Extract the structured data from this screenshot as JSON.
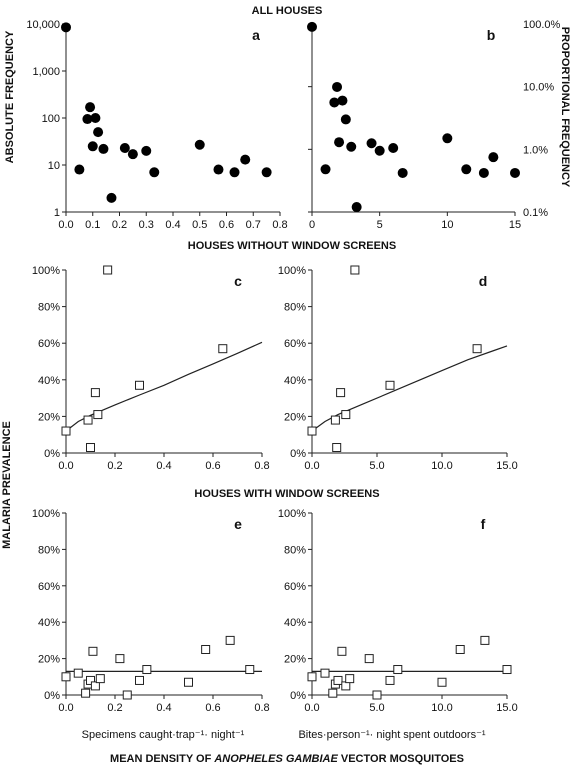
{
  "headings": {
    "all_houses": "ALL HOUSES",
    "without_screens": "HOUSES WITHOUT WINDOW SCREENS",
    "with_screens": "HOUSES WITH WINDOW SCREENS",
    "bottom_title_pre": "MEAN DENSITY OF ",
    "bottom_title_italic": "ANOPHELES GAMBIAE",
    "bottom_title_post": " VECTOR MOSQUITOES"
  },
  "axis_labels": {
    "absolute_frequency": "ABSOLUTE FREQUENCY",
    "proportional_frequency": "PROPORTIONAL FREQUENCY",
    "malaria_prevalence": "MALARIA PREVALENCE",
    "x_left": "Specimens caught·trap⁻¹· night⁻¹",
    "x_right": "Bites·person⁻¹· night spent outdoors⁻¹"
  },
  "chart_data": [
    {
      "panel": "a",
      "type": "scatter",
      "ylabel": "ABSOLUTE FREQUENCY",
      "y_scale": "log",
      "xlim": [
        0,
        0.8
      ],
      "ylim": [
        1,
        10000
      ],
      "x_ticks": [
        "0.0",
        "0.1",
        "0.2",
        "0.3",
        "0.4",
        "0.5",
        "0.6",
        "0.7",
        "0.8"
      ],
      "y_ticks": [
        "1",
        "10",
        "100",
        "1,000",
        "10,000"
      ],
      "points": [
        [
          0.0,
          8500
        ],
        [
          0.05,
          8
        ],
        [
          0.08,
          95
        ],
        [
          0.09,
          170
        ],
        [
          0.1,
          25
        ],
        [
          0.11,
          100
        ],
        [
          0.12,
          50
        ],
        [
          0.14,
          22
        ],
        [
          0.17,
          2
        ],
        [
          0.22,
          23
        ],
        [
          0.25,
          17
        ],
        [
          0.3,
          20
        ],
        [
          0.33,
          7
        ],
        [
          0.5,
          27
        ],
        [
          0.57,
          8
        ],
        [
          0.63,
          7
        ],
        [
          0.67,
          13
        ],
        [
          0.75,
          7
        ]
      ]
    },
    {
      "panel": "b",
      "type": "scatter",
      "ylabel": "PROPORTIONAL FREQUENCY",
      "y_scale": "log",
      "xlim": [
        0,
        15
      ],
      "ylim": [
        0.1,
        100
      ],
      "x_ticks": [
        "0",
        "5",
        "10",
        "15"
      ],
      "y_ticks": [
        "0.1%",
        "1.0%",
        "10.0%",
        "100.0%"
      ],
      "points": [
        [
          0.0,
          90
        ],
        [
          1.0,
          0.48
        ],
        [
          1.65,
          5.6
        ],
        [
          1.85,
          9.9
        ],
        [
          2.0,
          1.3
        ],
        [
          2.25,
          6.0
        ],
        [
          2.5,
          3.0
        ],
        [
          2.9,
          1.1
        ],
        [
          3.3,
          0.12
        ],
        [
          4.4,
          1.25
        ],
        [
          5.0,
          0.95
        ],
        [
          6.0,
          1.05
        ],
        [
          6.7,
          0.42
        ],
        [
          10.0,
          1.5
        ],
        [
          11.4,
          0.48
        ],
        [
          12.7,
          0.42
        ],
        [
          13.4,
          0.75
        ],
        [
          15.0,
          0.42
        ]
      ]
    },
    {
      "panel": "c",
      "type": "scatter",
      "ylabel": "MALARIA PREVALENCE",
      "xlim": [
        0,
        0.8
      ],
      "ylim": [
        0,
        1
      ],
      "x_ticks": [
        "0.0",
        "0.2",
        "0.4",
        "0.6",
        "0.8"
      ],
      "y_ticks": [
        "0%",
        "20%",
        "40%",
        "60%",
        "80%",
        "100%"
      ],
      "points": [
        [
          0.0,
          0.12
        ],
        [
          0.09,
          0.18
        ],
        [
          0.1,
          0.03
        ],
        [
          0.12,
          0.33
        ],
        [
          0.13,
          0.21
        ],
        [
          0.17,
          1.0
        ],
        [
          0.3,
          0.37
        ],
        [
          0.64,
          0.57
        ]
      ],
      "fit_curve": [
        [
          0.0,
          0.12
        ],
        [
          0.05,
          0.172
        ],
        [
          0.1,
          0.206
        ],
        [
          0.2,
          0.263
        ],
        [
          0.3,
          0.317
        ],
        [
          0.4,
          0.37
        ],
        [
          0.5,
          0.43
        ],
        [
          0.6,
          0.487
        ],
        [
          0.7,
          0.545
        ],
        [
          0.8,
          0.605
        ]
      ]
    },
    {
      "panel": "d",
      "type": "scatter",
      "xlim": [
        0,
        15
      ],
      "ylim": [
        0,
        1
      ],
      "x_ticks": [
        "0.0",
        "5.0",
        "10.0",
        "15.0"
      ],
      "y_ticks": [
        "0%",
        "20%",
        "40%",
        "60%",
        "80%",
        "100%"
      ],
      "points": [
        [
          0.0,
          0.12
        ],
        [
          1.8,
          0.18
        ],
        [
          1.9,
          0.03
        ],
        [
          2.2,
          0.33
        ],
        [
          2.6,
          0.21
        ],
        [
          3.3,
          1.0
        ],
        [
          6.0,
          0.37
        ],
        [
          12.7,
          0.57
        ]
      ],
      "fit_curve": [
        [
          0.0,
          0.12
        ],
        [
          1.0,
          0.172
        ],
        [
          2.0,
          0.21
        ],
        [
          4.0,
          0.27
        ],
        [
          6.0,
          0.33
        ],
        [
          8.0,
          0.39
        ],
        [
          10.0,
          0.45
        ],
        [
          12.0,
          0.51
        ],
        [
          14.0,
          0.56
        ],
        [
          15.0,
          0.585
        ]
      ]
    },
    {
      "panel": "e",
      "type": "scatter",
      "xlabel": "Specimens caught·trap⁻¹· night⁻¹",
      "xlim": [
        0,
        0.8
      ],
      "ylim": [
        0,
        1
      ],
      "x_ticks": [
        "0.0",
        "0.2",
        "0.4",
        "0.6",
        "0.8"
      ],
      "y_ticks": [
        "0%",
        "20%",
        "40%",
        "60%",
        "80%",
        "100%"
      ],
      "points": [
        [
          0.0,
          0.1
        ],
        [
          0.05,
          0.12
        ],
        [
          0.08,
          0.01
        ],
        [
          0.09,
          0.06
        ],
        [
          0.1,
          0.08
        ],
        [
          0.11,
          0.24
        ],
        [
          0.12,
          0.05
        ],
        [
          0.14,
          0.09
        ],
        [
          0.22,
          0.2
        ],
        [
          0.25,
          0.0
        ],
        [
          0.3,
          0.08
        ],
        [
          0.33,
          0.14
        ],
        [
          0.5,
          0.07
        ],
        [
          0.57,
          0.25
        ],
        [
          0.67,
          0.3
        ],
        [
          0.75,
          0.14
        ]
      ],
      "fit_line": 0.13
    },
    {
      "panel": "f",
      "type": "scatter",
      "xlabel": "Bites·person⁻¹· night spent outdoors⁻¹",
      "xlim": [
        0,
        15
      ],
      "ylim": [
        0,
        1
      ],
      "x_ticks": [
        "0.0",
        "5.0",
        "10.0",
        "15.0"
      ],
      "y_ticks": [
        "0%",
        "20%",
        "40%",
        "60%",
        "80%",
        "100%"
      ],
      "points": [
        [
          0.0,
          0.1
        ],
        [
          1.0,
          0.12
        ],
        [
          1.6,
          0.01
        ],
        [
          1.8,
          0.06
        ],
        [
          2.0,
          0.08
        ],
        [
          2.3,
          0.24
        ],
        [
          2.6,
          0.05
        ],
        [
          2.9,
          0.09
        ],
        [
          4.4,
          0.2
        ],
        [
          5.0,
          0.0
        ],
        [
          6.0,
          0.08
        ],
        [
          6.6,
          0.14
        ],
        [
          10.0,
          0.07
        ],
        [
          11.4,
          0.25
        ],
        [
          13.3,
          0.3
        ],
        [
          15.0,
          0.14
        ]
      ],
      "fit_line": 0.13
    }
  ]
}
